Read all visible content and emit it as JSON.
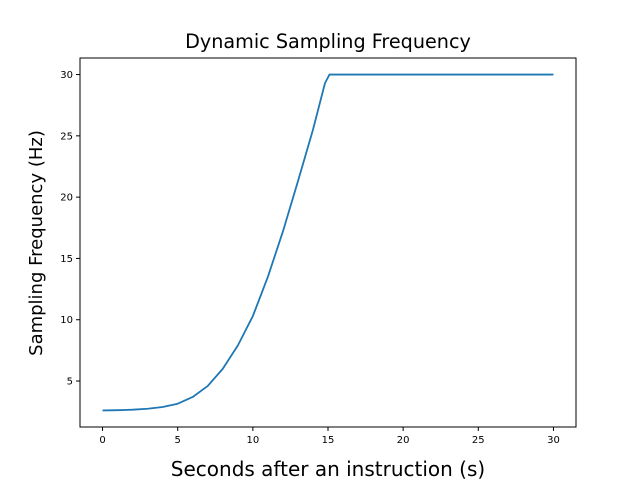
{
  "chart_data": {
    "type": "line",
    "title": "Dynamic Sampling Frequency",
    "xlabel": "Seconds after an instruction (s)",
    "ylabel": "Sampling Frequency (Hz)",
    "xlim": [
      -1.5,
      31.5
    ],
    "ylim": [
      1.25,
      31.35
    ],
    "xticks": [
      0,
      5,
      10,
      15,
      20,
      25,
      30
    ],
    "yticks": [
      5,
      10,
      15,
      20,
      25,
      30
    ],
    "grid": false,
    "series": [
      {
        "color": "#1f77b4",
        "x": [
          0,
          1,
          2,
          3,
          4,
          5,
          6,
          7,
          8,
          9,
          10,
          11,
          12,
          13,
          14,
          14.8,
          15.1,
          20,
          25,
          30
        ],
        "y": [
          2.6,
          2.62,
          2.66,
          2.74,
          2.88,
          3.15,
          3.7,
          4.6,
          6.0,
          7.9,
          10.3,
          13.5,
          17.2,
          21.3,
          25.5,
          29.3,
          30,
          30,
          30,
          30
        ]
      }
    ]
  }
}
